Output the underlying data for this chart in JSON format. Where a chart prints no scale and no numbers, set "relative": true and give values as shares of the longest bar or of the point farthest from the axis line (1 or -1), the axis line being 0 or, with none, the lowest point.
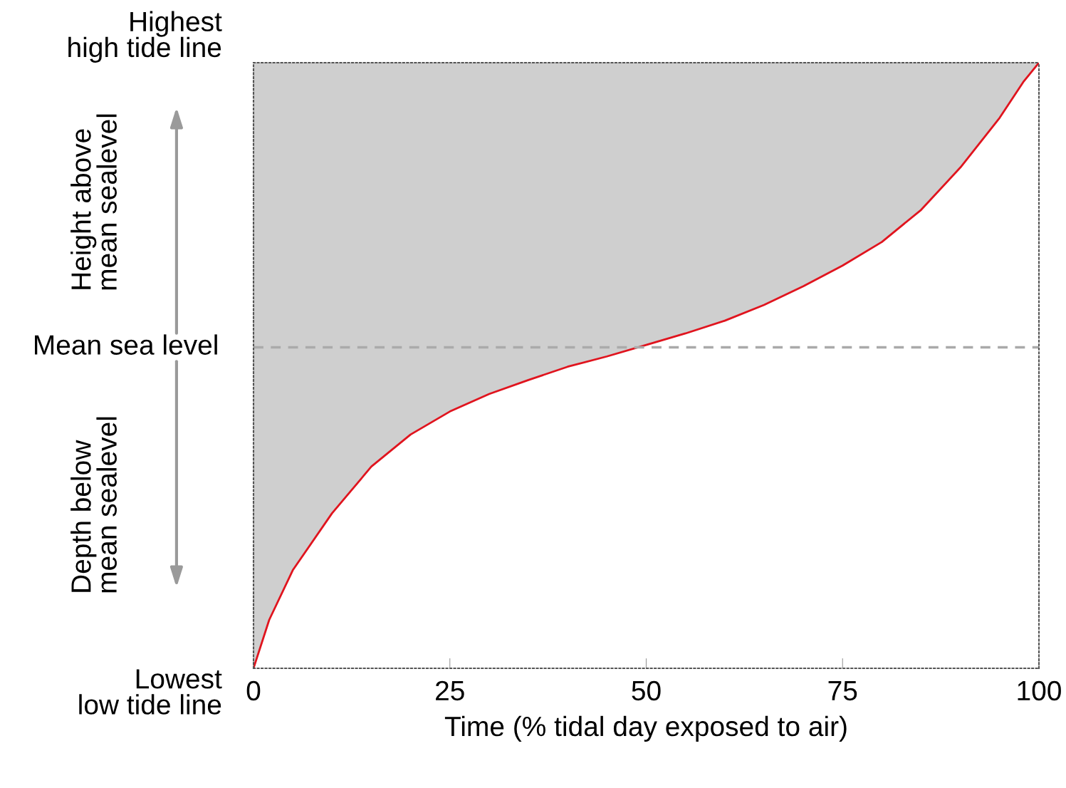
{
  "chart_data": {
    "type": "line",
    "relative": true,
    "xlabel": "Time (% tidal day exposed to air)",
    "x": [
      0,
      2,
      5,
      10,
      15,
      20,
      25,
      30,
      35,
      40,
      45,
      50,
      55,
      60,
      65,
      70,
      75,
      80,
      85,
      90,
      95,
      98,
      100
    ],
    "series": [
      {
        "color": "#e0141e",
        "values": [
          0,
          0.08,
          0.162,
          0.256,
          0.333,
          0.386,
          0.424,
          0.453,
          0.476,
          0.498,
          0.515,
          0.534,
          0.553,
          0.574,
          0.6,
          0.631,
          0.665,
          0.704,
          0.757,
          0.827,
          0.909,
          0.968,
          1
        ]
      }
    ],
    "xlim": [
      0,
      100
    ],
    "xticks": [
      0,
      25,
      50,
      75,
      100
    ],
    "ref_lines": [
      {
        "axis": "y",
        "value": 0.53,
        "label": "Mean sea level",
        "color": "#aaaaaa",
        "line_style": "dashed"
      }
    ],
    "annotations": [
      "Highest\nhigh tide line",
      "Lowest\nlow tide line",
      "Height above\nmean sealevel",
      "Depth below\nmean sealevel"
    ],
    "grid": false,
    "legend": false
  }
}
